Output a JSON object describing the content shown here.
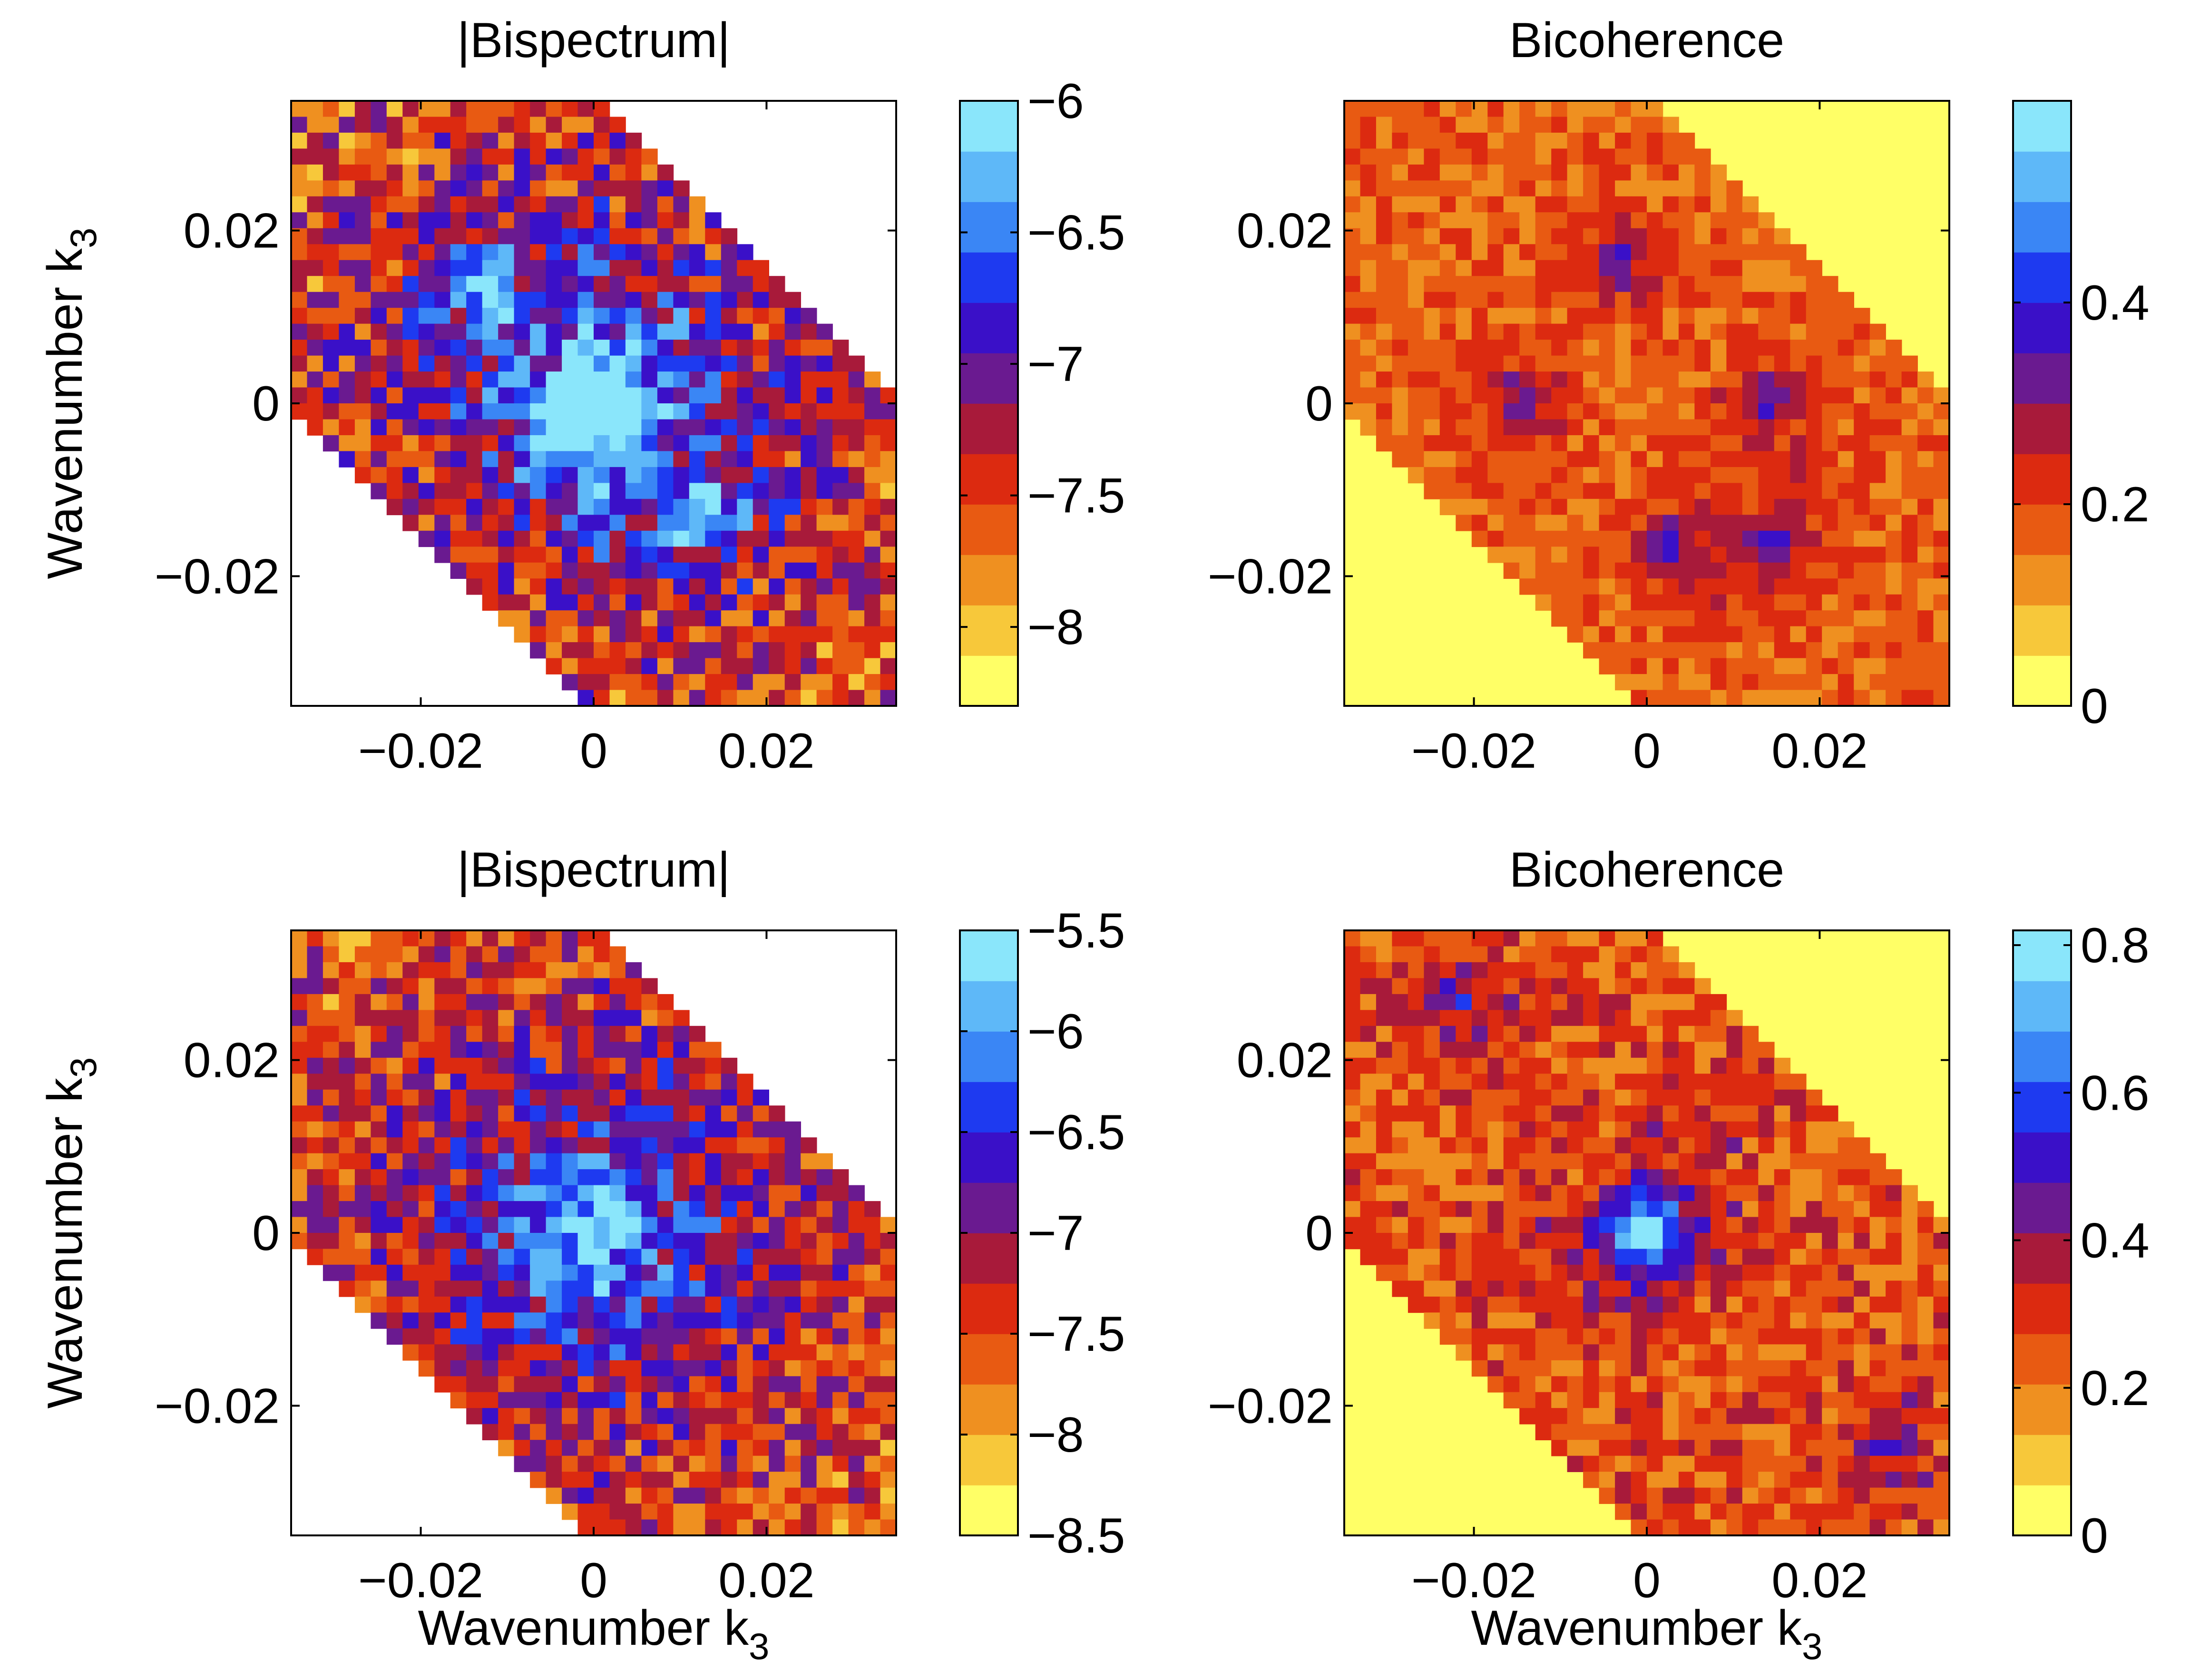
{
  "figure": {
    "background": "#ffffff",
    "axis_color": "#000000"
  },
  "colormap": [
    "#ffff66",
    "#f7c83a",
    "#ef9020",
    "#e85a12",
    "#dc2a10",
    "#a81a3a",
    "#6a1a90",
    "#3a10c8",
    "#1e3af0",
    "#3a86f5",
    "#5eb8f8",
    "#8ae6fb"
  ],
  "chart_data": [
    {
      "id": "top-left",
      "type": "heatmap",
      "title": "|Bispectrum|",
      "xlabel": "",
      "ylabel": "Wavenumber k",
      "ylabel_sub": "3",
      "xlim": [
        -0.035,
        0.035
      ],
      "ylim": [
        -0.035,
        0.035
      ],
      "xticks": [
        -0.02,
        0,
        0.02
      ],
      "xtick_labels": [
        "−0.02",
        "0",
        "0.02"
      ],
      "yticks": [
        -0.02,
        0,
        0.02
      ],
      "ytick_labels": [
        "−0.02",
        "0",
        "0.02"
      ],
      "colorbar": {
        "range": [
          -8.3,
          -6.0
        ],
        "ticks": [
          -6,
          -6.5,
          -7,
          -7.5,
          -8
        ],
        "tick_labels": [
          "−6",
          "−6.5",
          "−7",
          "−7.5",
          "−8"
        ]
      },
      "field": {
        "domain": "hexagon",
        "center": -6.05,
        "edge": -7.55,
        "decay": 0.012,
        "star": 0.9,
        "satellites": [
          [
            -0.013,
            0.014,
            0.7
          ],
          [
            0.013,
            -0.013,
            0.7
          ]
        ],
        "noise": 0.45,
        "seed": 11,
        "outside": "white"
      }
    },
    {
      "id": "top-right",
      "type": "heatmap",
      "title": "Bicoherence",
      "xlabel": "",
      "ylabel": "",
      "ylabel_sub": "",
      "xlim": [
        -0.035,
        0.035
      ],
      "ylim": [
        -0.035,
        0.035
      ],
      "xticks": [
        -0.02,
        0,
        0.02
      ],
      "xtick_labels": [
        "−0.02",
        "0",
        "0.02"
      ],
      "yticks": [
        -0.02,
        0,
        0.02
      ],
      "ytick_labels": [
        "−0.02",
        "0",
        "0.02"
      ],
      "colorbar": {
        "range": [
          0,
          0.6
        ],
        "ticks": [
          0,
          0.2,
          0.4
        ],
        "tick_labels": [
          "0",
          "0.2",
          "0.4"
        ]
      },
      "field": {
        "domain": "hexagon",
        "center": 0.12,
        "edge": 0.18,
        "decay": 0.02,
        "star": 0,
        "satellites": [
          [
            -0.014,
            0.0,
            0.4
          ],
          [
            0.014,
            0.0,
            0.4
          ],
          [
            -0.003,
            0.016,
            0.38
          ],
          [
            0.003,
            -0.016,
            0.38
          ],
          [
            0.015,
            -0.016,
            0.33
          ]
        ],
        "noise": 0.16,
        "seed": 23,
        "outside": "#ffff66"
      }
    },
    {
      "id": "bottom-left",
      "type": "heatmap",
      "title": "|Bispectrum|",
      "xlabel": "Wavenumber k",
      "xlabel_sub": "3",
      "ylabel": "Wavenumber k",
      "ylabel_sub": "3",
      "xlim": [
        -0.035,
        0.035
      ],
      "ylim": [
        -0.035,
        0.035
      ],
      "xticks": [
        -0.02,
        0,
        0.02
      ],
      "xtick_labels": [
        "−0.02",
        "0",
        "0.02"
      ],
      "yticks": [
        -0.02,
        0,
        0.02
      ],
      "ytick_labels": [
        "−0.02",
        "0",
        "0.02"
      ],
      "colorbar": {
        "range": [
          -8.5,
          -5.5
        ],
        "ticks": [
          -5.5,
          -6,
          -6.5,
          -7,
          -7.5,
          -8,
          -8.5
        ],
        "tick_labels": [
          "−5.5",
          "−6",
          "−6.5",
          "−7",
          "−7.5",
          "−8",
          "−8.5"
        ]
      },
      "field": {
        "domain": "hexagon",
        "center": -5.7,
        "edge": -7.6,
        "decay": 0.016,
        "star": 0.2,
        "satellites": [],
        "noise": 0.4,
        "seed": 37,
        "outside": "white"
      }
    },
    {
      "id": "bottom-right",
      "type": "heatmap",
      "title": "Bicoherence",
      "xlabel": "Wavenumber k",
      "xlabel_sub": "3",
      "ylabel": "",
      "ylabel_sub": "",
      "xlim": [
        -0.035,
        0.035
      ],
      "ylim": [
        -0.035,
        0.035
      ],
      "xticks": [
        -0.02,
        0,
        0.02
      ],
      "xtick_labels": [
        "−0.02",
        "0",
        "0.02"
      ],
      "yticks": [
        -0.02,
        0,
        0.02
      ],
      "ytick_labels": [
        "−0.02",
        "0",
        "0.02"
      ],
      "colorbar": {
        "range": [
          0,
          0.82
        ],
        "ticks": [
          0,
          0.2,
          0.4,
          0.6,
          0.8
        ],
        "tick_labels": [
          "0",
          "0.2",
          "0.4",
          "0.6",
          "0.8"
        ]
      },
      "field": {
        "domain": "hexagon",
        "center": 0.8,
        "edge": 0.25,
        "decay": 0.004,
        "star": 0.5,
        "satellites": [
          [
            -0.022,
            0.027,
            0.35
          ],
          [
            0.027,
            -0.025,
            0.35
          ]
        ],
        "noise": 0.26,
        "seed": 53,
        "outside": "#ffff66"
      }
    }
  ]
}
